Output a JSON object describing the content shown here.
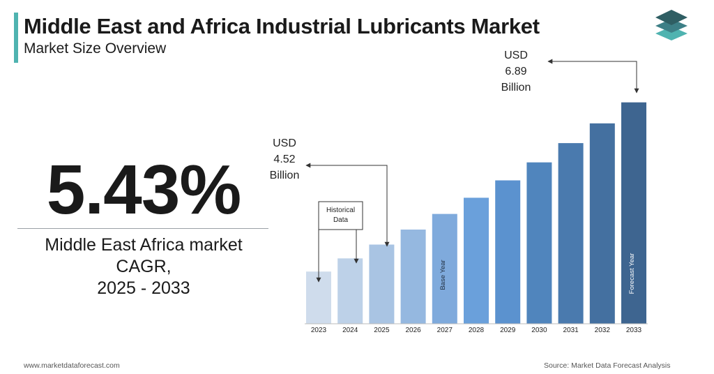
{
  "header": {
    "title": "Middle East and Africa Industrial Lubricants Market",
    "subtitle": "Market Size Overview"
  },
  "brand": {
    "logo_icon": "layered-diamond-logo-icon",
    "colors": {
      "accent": "#4fb3b0",
      "dark": "#3a5a6b"
    }
  },
  "kpi": {
    "cagr_value": "5.43%",
    "cagr_label_line1": "Middle East Africa market",
    "cagr_label_line2": "CAGR,",
    "cagr_label_line3": "2025 - 2033"
  },
  "chart_data": {
    "type": "bar",
    "categories": [
      "2023",
      "2024",
      "2025",
      "2026",
      "2027",
      "2028",
      "2029",
      "2030",
      "2031",
      "2032",
      "2033"
    ],
    "values": [
      4.07,
      4.29,
      4.52,
      4.77,
      5.03,
      5.3,
      5.59,
      5.89,
      6.21,
      6.54,
      6.89
    ],
    "colors": [
      "#cfdcec",
      "#bdd1e8",
      "#a9c4e3",
      "#95b8e0",
      "#7faadc",
      "#6aa0db",
      "#5b92cf",
      "#5085bd",
      "#4a7aae",
      "#4470a0",
      "#3e6590"
    ],
    "ylim": [
      3.2,
      7.2
    ],
    "bar_labels": {
      "base_year": "Base Year",
      "forecast_year": "Forecast Year"
    },
    "annotations": {
      "start": {
        "line1": "USD",
        "line2": "4.52",
        "line3": "Billion"
      },
      "end": {
        "line1": "USD",
        "line2": "6.89",
        "line3": "Billion"
      },
      "historical": {
        "line1": "Historical",
        "line2": "Data"
      }
    }
  },
  "footer": {
    "website": "www.marketdataforecast.com",
    "source": "Source: Market Data Forecast Analysis"
  }
}
